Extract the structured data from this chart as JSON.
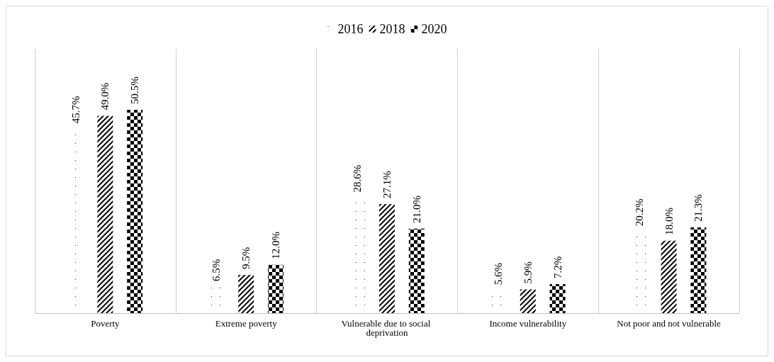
{
  "chart_data": {
    "type": "bar",
    "categories": [
      "Poverty",
      "Extreme poverty",
      "Vulnerable due to social deprivation",
      "Income vulnerability",
      "Not poor and not vulnerable"
    ],
    "series": [
      {
        "name": "2016",
        "color": "#000000",
        "values": [
          45.7,
          6.5,
          28.6,
          5.6,
          20.2
        ],
        "value_labels": [
          "45.7%",
          "6.5%",
          "28.6%",
          "5.6%",
          "20.2%"
        ]
      },
      {
        "name": "2018",
        "color": "#000000",
        "values": [
          49.0,
          9.5,
          27.1,
          5.9,
          18.0
        ],
        "value_labels": [
          "49.0%",
          "9.5%",
          "27.1%",
          "5.9%",
          "18.0%"
        ]
      },
      {
        "name": "2020",
        "color": "#000000",
        "values": [
          50.5,
          12.0,
          21.0,
          7.2,
          21.3
        ],
        "value_labels": [
          "50.5%",
          "12.0%",
          "21.0%",
          "7.2%",
          "21.3%"
        ]
      }
    ],
    "legend": "top",
    "grid": "x"
  }
}
